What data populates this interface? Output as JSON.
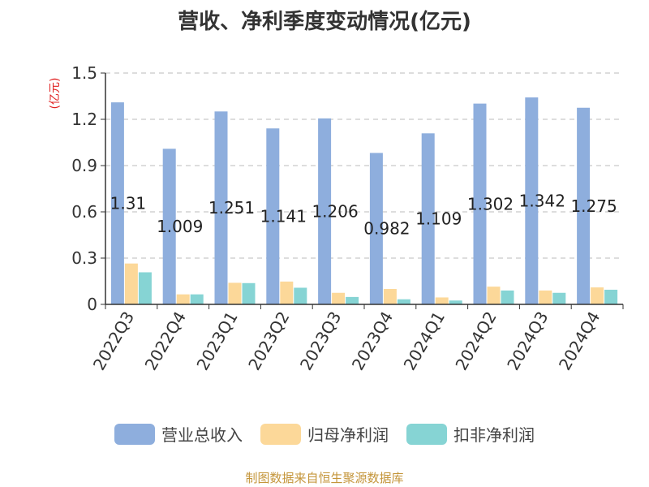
{
  "title": "营收、净利季度变动情况(亿元)",
  "footer": "制图数据来自恒生聚源数据库",
  "chart_data": {
    "type": "bar",
    "title": "营收、净利季度变动情况(亿元)",
    "ylabel": "(亿元)",
    "xlabel": "",
    "ylim": [
      0,
      1.5
    ],
    "yticks": [
      0,
      0.3,
      0.6,
      0.9,
      1.2,
      1.5
    ],
    "ytick_labels": [
      "0",
      "0.3",
      "0.6",
      "0.9",
      "1.2",
      "1.5"
    ],
    "grid": true,
    "legend_position": "bottom",
    "categories": [
      "2022Q3",
      "2022Q4",
      "2023Q1",
      "2023Q2",
      "2023Q3",
      "2023Q4",
      "2024Q1",
      "2024Q2",
      "2024Q3",
      "2024Q4"
    ],
    "series": [
      {
        "name": "营业总收入",
        "color": "#8eaedd",
        "values": [
          1.31,
          1.009,
          1.251,
          1.141,
          1.206,
          0.982,
          1.109,
          1.302,
          1.342,
          1.275
        ],
        "data_labels": [
          "1.31",
          "1.009",
          "1.251",
          "1.141",
          "1.206",
          "0.982",
          "1.109",
          "1.302",
          "1.342",
          "1.275"
        ]
      },
      {
        "name": "归母净利润",
        "color": "#fcd899",
        "values": [
          0.265,
          0.065,
          0.14,
          0.148,
          0.075,
          0.1,
          0.045,
          0.115,
          0.09,
          0.11
        ]
      },
      {
        "name": "扣非净利润",
        "color": "#86d4d4",
        "values": [
          0.208,
          0.065,
          0.138,
          0.108,
          0.048,
          0.033,
          0.025,
          0.09,
          0.075,
          0.095
        ]
      }
    ]
  }
}
